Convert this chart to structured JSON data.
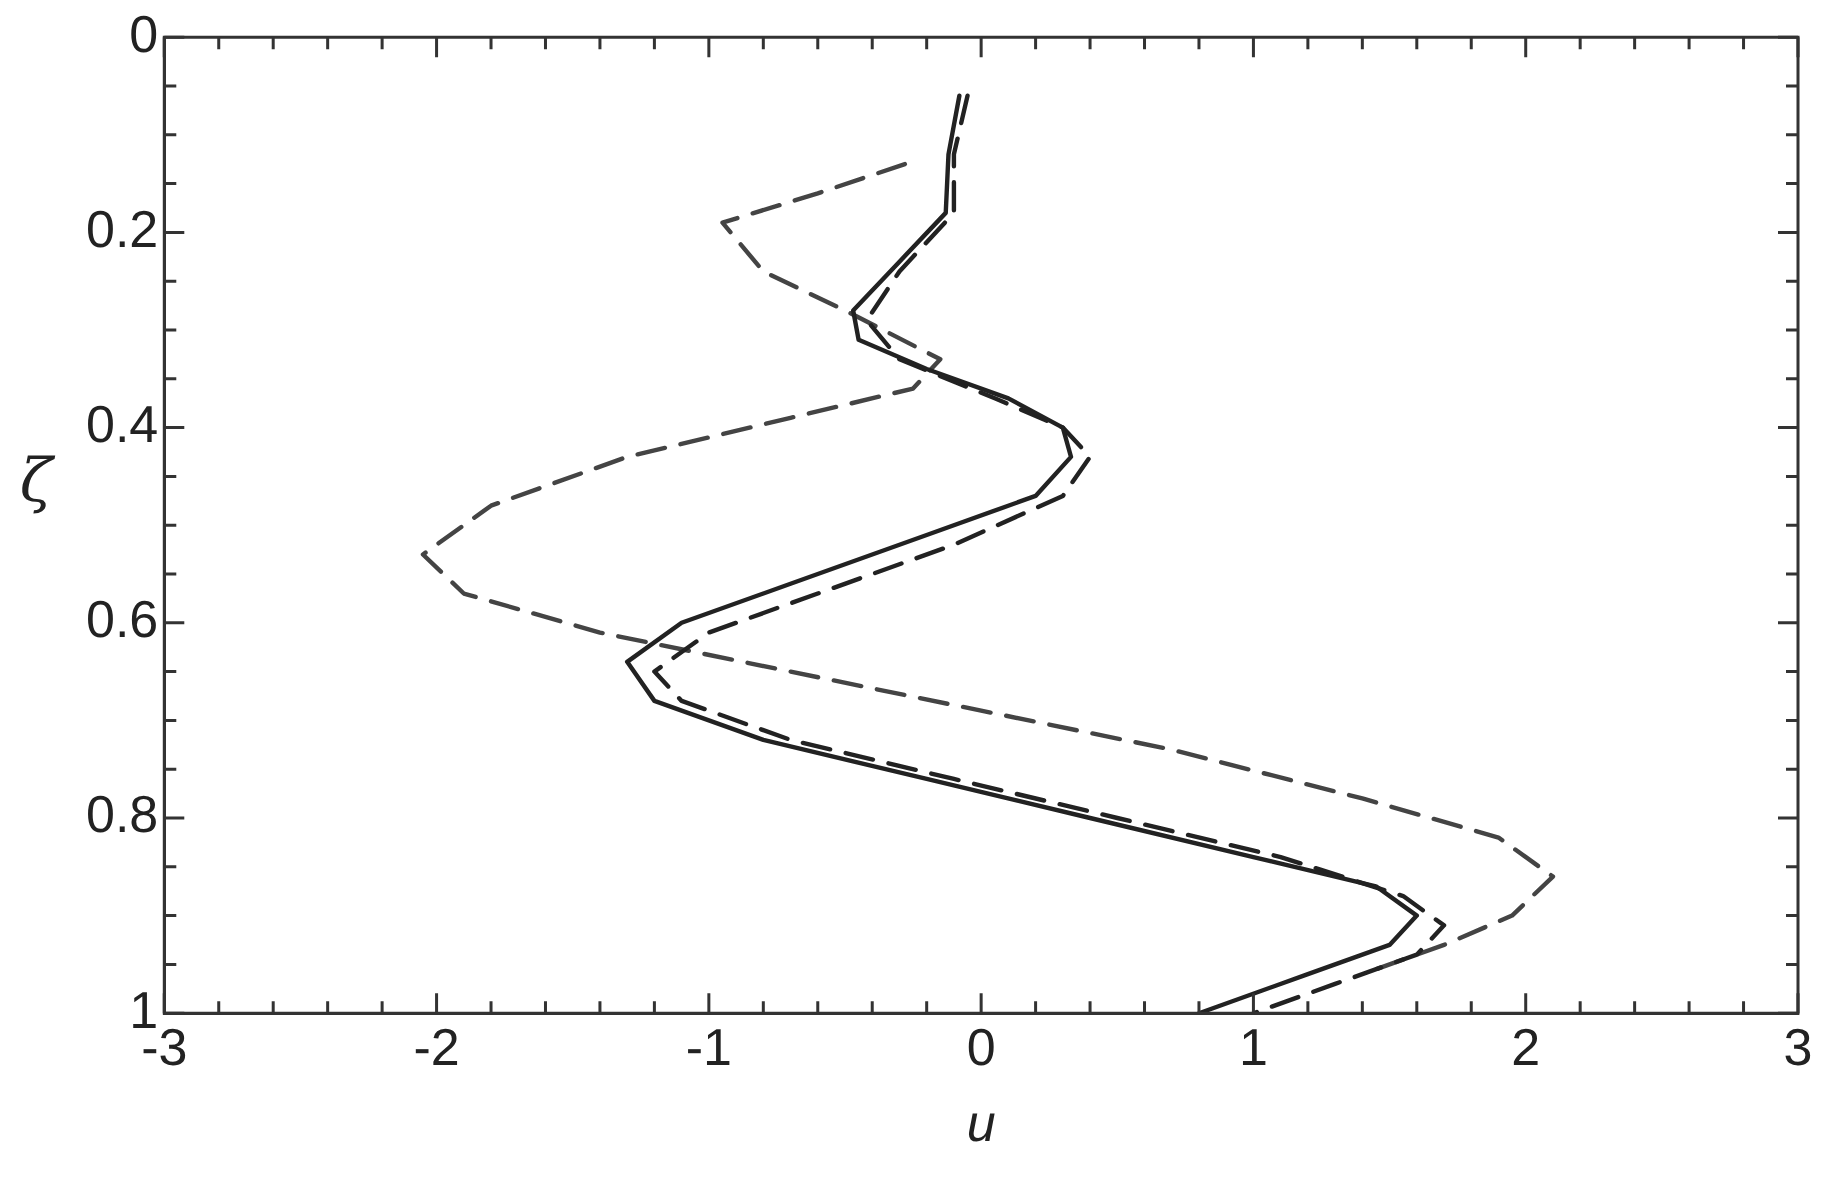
{
  "chart_data": {
    "type": "line",
    "xlabel": "u",
    "ylabel": "ζ",
    "xlim": [
      -3,
      3
    ],
    "ylim": [
      1,
      0
    ],
    "xticks": [
      -3,
      {
        "value": -2.8,
        "label": null
      },
      {
        "value": -2.6,
        "label": null
      },
      {
        "value": -2.4,
        "label": null
      },
      {
        "value": -2.2,
        "label": null
      },
      -2,
      {
        "value": -1.8,
        "label": null
      },
      {
        "value": -1.6,
        "label": null
      },
      {
        "value": -1.4,
        "label": null
      },
      {
        "value": -1.2,
        "label": null
      },
      -1,
      {
        "value": -0.8,
        "label": null
      },
      {
        "value": -0.6,
        "label": null
      },
      {
        "value": -0.4,
        "label": null
      },
      {
        "value": -0.2,
        "label": null
      },
      0,
      {
        "value": 0.2,
        "label": null
      },
      {
        "value": 0.4,
        "label": null
      },
      {
        "value": 0.6,
        "label": null
      },
      {
        "value": 0.8,
        "label": null
      },
      1,
      {
        "value": 1.2,
        "label": null
      },
      {
        "value": 1.4,
        "label": null
      },
      {
        "value": 1.6,
        "label": null
      },
      {
        "value": 1.8,
        "label": null
      },
      2,
      {
        "value": 2.2,
        "label": null
      },
      {
        "value": 2.4,
        "label": null
      },
      {
        "value": 2.6,
        "label": null
      },
      {
        "value": 2.8,
        "label": null
      },
      3
    ],
    "yticks": [
      0,
      {
        "value": 0.05,
        "label": null
      },
      {
        "value": 0.1,
        "label": null
      },
      {
        "value": 0.15,
        "label": null
      },
      0.2,
      {
        "value": 0.25,
        "label": null
      },
      {
        "value": 0.3,
        "label": null
      },
      {
        "value": 0.35,
        "label": null
      },
      0.4,
      {
        "value": 0.45,
        "label": null
      },
      {
        "value": 0.5,
        "label": null
      },
      {
        "value": 0.55,
        "label": null
      },
      0.6,
      {
        "value": 0.65,
        "label": null
      },
      {
        "value": 0.7,
        "label": null
      },
      {
        "value": 0.75,
        "label": null
      },
      0.8,
      {
        "value": 0.85,
        "label": null
      },
      {
        "value": 0.9,
        "label": null
      },
      {
        "value": 0.95,
        "label": null
      },
      1
    ],
    "grid": false,
    "legend": false,
    "marker": "none",
    "series": [
      {
        "color": "#222222",
        "line_style": "solid",
        "x": [
          -0.08,
          -0.12,
          -0.13,
          -0.3,
          -0.47,
          -0.45,
          -0.2,
          0.1,
          0.3,
          0.33,
          0.2,
          -0.2,
          -0.7,
          -1.1,
          -1.3,
          -1.2,
          -0.8,
          -0.2,
          0.4,
          1.0,
          1.45,
          1.6,
          1.5,
          1.2,
          0.8
        ],
        "values": [
          0.06,
          0.12,
          0.18,
          0.23,
          0.28,
          0.31,
          0.34,
          0.37,
          0.4,
          0.43,
          0.47,
          0.51,
          0.56,
          0.6,
          0.64,
          0.68,
          0.72,
          0.76,
          0.8,
          0.84,
          0.87,
          0.9,
          0.93,
          0.96,
          1.0
        ]
      },
      {
        "color": "#222222",
        "line_style": "dashed",
        "x": [
          -0.05,
          -0.1,
          -0.1,
          -0.3,
          -0.42,
          -0.3,
          0.05,
          0.3,
          0.4,
          0.3,
          -0.1,
          -0.6,
          -1.0,
          -1.2,
          -1.1,
          -0.7,
          -0.1,
          0.5,
          1.1,
          1.55,
          1.7,
          1.6,
          1.3,
          1.0
        ],
        "values": [
          0.06,
          0.12,
          0.18,
          0.24,
          0.29,
          0.33,
          0.37,
          0.4,
          0.43,
          0.47,
          0.52,
          0.57,
          0.61,
          0.65,
          0.68,
          0.72,
          0.76,
          0.8,
          0.84,
          0.88,
          0.91,
          0.94,
          0.97,
          1.0
        ]
      },
      {
        "color": "#444444",
        "line_style": "dashed",
        "x": [
          -0.28,
          -0.6,
          -0.95,
          -0.8,
          -0.5,
          -0.15,
          -0.25,
          -0.7,
          -1.3,
          -1.8,
          -2.05,
          -1.9,
          -1.4,
          -0.7,
          0,
          0.7,
          1.4,
          1.9,
          2.1,
          1.95,
          1.7,
          1.4
        ],
        "values": [
          0.13,
          0.16,
          0.19,
          0.24,
          0.28,
          0.33,
          0.36,
          0.39,
          0.43,
          0.48,
          0.53,
          0.57,
          0.61,
          0.65,
          0.69,
          0.73,
          0.78,
          0.82,
          0.86,
          0.9,
          0.93,
          0.96
        ]
      }
    ]
  }
}
